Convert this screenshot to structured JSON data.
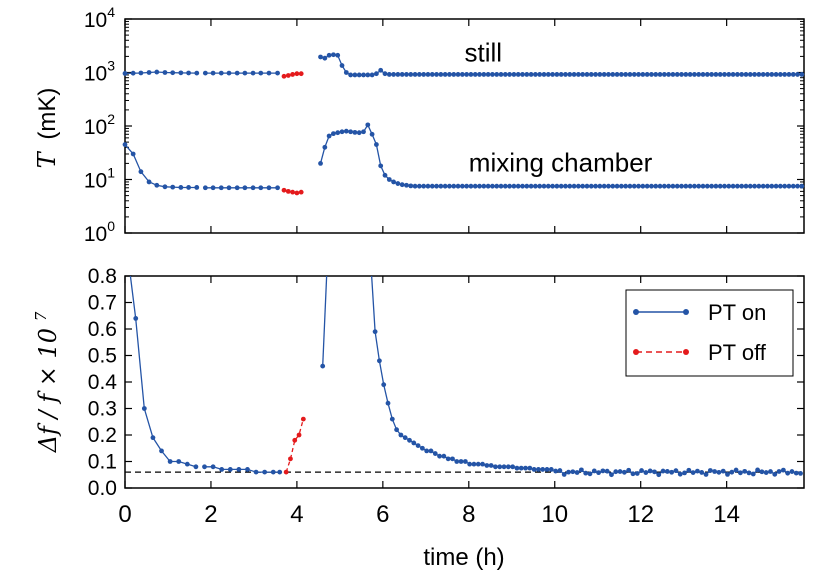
{
  "chart_data": [
    {
      "type": "line",
      "yscale": "log",
      "ylabel": {
        "symbol": "T",
        "unit": "(mK)"
      },
      "xlim": [
        0,
        15.8
      ],
      "ylim": [
        1,
        10000
      ],
      "yticks": [
        {
          "base": "10",
          "exp": "0",
          "value": 1
        },
        {
          "base": "10",
          "exp": "1",
          "value": 10
        },
        {
          "base": "10",
          "exp": "2",
          "value": 100
        },
        {
          "base": "10",
          "exp": "3",
          "value": 1000
        },
        {
          "base": "10",
          "exp": "4",
          "value": 10000
        }
      ],
      "annotations": [
        {
          "text": "still",
          "x": 7.9,
          "y": 1600
        },
        {
          "text": "mixing chamber",
          "x": 8.0,
          "y": 14
        }
      ],
      "series": [
        {
          "style": "PT on",
          "color": "#2454a6",
          "segments": [
            {
              "x": [
                0,
                0.19,
                0.37,
                0.56,
                0.74,
                0.93,
                1.11,
                1.3,
                1.48,
                1.67
              ],
              "y": [
                960,
                970,
                980,
                1000,
                1020,
                1000,
                990,
                985,
                980,
                975
              ]
            },
            {
              "x": [
                1.87,
                2.05,
                2.24,
                2.42,
                2.61,
                2.79,
                2.98,
                3.16,
                3.35,
                3.55
              ],
              "y": [
                975,
                975,
                975,
                975,
                975,
                975,
                975,
                975,
                975,
                975
              ]
            },
            {
              "x": [
                4.55,
                4.65,
                4.75,
                4.85,
                4.95,
                5.05,
                5.15,
                5.25,
                5.35,
                5.45,
                5.55,
                5.65,
                5.75,
                5.85,
                5.95,
                6.05
              ],
              "y": [
                1950,
                1850,
                2100,
                2150,
                2100,
                1350,
                1000,
                900,
                900,
                900,
                900,
                900,
                900,
                950,
                1100,
                950
              ]
            },
            {
              "x": "range:6.15:15.75:0.1",
              "y": "const:920"
            },
            {
              "x": [
                0,
                0.19,
                0.37,
                0.56,
                0.74,
                0.93,
                1.11,
                1.3,
                1.48,
                1.67
              ],
              "y": [
                45,
                30,
                14,
                9,
                7.8,
                7.3,
                7.2,
                7.1,
                7.1,
                7.1
              ]
            },
            {
              "x": [
                1.87,
                2.05,
                2.24,
                2.42,
                2.61,
                2.79,
                2.98,
                3.16,
                3.35,
                3.55
              ],
              "y": [
                7,
                7,
                7,
                7,
                7,
                7,
                7,
                7,
                7,
                7
              ]
            },
            {
              "x": [
                4.55,
                4.65,
                4.75,
                4.85,
                4.95,
                5.05,
                5.15,
                5.25,
                5.35,
                5.45,
                5.55,
                5.65,
                5.75,
                5.85,
                5.95,
                6.05,
                6.15,
                6.25,
                6.35,
                6.45,
                6.55,
                6.65
              ],
              "y": [
                20,
                40,
                65,
                72,
                75,
                78,
                80,
                78,
                76,
                75,
                78,
                105,
                70,
                45,
                18,
                12,
                10,
                9,
                8.4,
                8.0,
                7.8,
                7.6
              ]
            },
            {
              "x": "range:6.75:15.75:0.1",
              "y": "const:7.5"
            }
          ]
        },
        {
          "style": "PT off",
          "color": "#e41a1c",
          "segments": [
            {
              "x": [
                3.7,
                3.8,
                3.9,
                4.0,
                4.1
              ],
              "y": [
                850,
                880,
                920,
                950,
                950
              ]
            },
            {
              "x": [
                3.7,
                3.8,
                3.9,
                4.0,
                4.1
              ],
              "y": [
                6.3,
                6.0,
                5.8,
                5.6,
                5.8
              ]
            }
          ]
        }
      ]
    },
    {
      "type": "line",
      "xlabel": "time (h)",
      "ylabel": {
        "text": "Δf / f × 10",
        "sup": "7"
      },
      "xlim": [
        0,
        15.8
      ],
      "ylim": [
        0,
        0.8
      ],
      "xticks": [
        "0",
        "2",
        "4",
        "6",
        "8",
        "10",
        "12",
        "14"
      ],
      "yticks": [
        "0.0",
        "0.1",
        "0.2",
        "0.3",
        "0.4",
        "0.5",
        "0.6",
        "0.7",
        "0.8"
      ],
      "hline": 0.06,
      "legend": {
        "placement": "top-right",
        "entries": [
          "PT on",
          "PT off"
        ]
      },
      "series": [
        {
          "name": "PT on",
          "color": "#2454a6",
          "segments": [
            {
              "x": [
                0.05,
                0.25,
                0.45,
                0.65,
                0.85,
                1.05,
                1.25,
                1.45,
                1.65
              ],
              "y": [
                0.9,
                0.64,
                0.3,
                0.19,
                0.14,
                0.1,
                0.1,
                0.09,
                0.08
              ]
            },
            {
              "x": [
                1.85,
                2.05,
                2.25,
                2.45,
                2.65,
                2.85,
                3.05,
                3.25,
                3.45,
                3.6
              ],
              "y": [
                0.08,
                0.08,
                0.07,
                0.07,
                0.07,
                0.07,
                0.06,
                0.06,
                0.06,
                0.06
              ]
            },
            {
              "x": [
                4.6,
                4.72
              ],
              "y": [
                0.46,
                0.9
              ]
            },
            {
              "x": [
                5.7,
                5.82,
                5.92,
                6.02,
                6.12,
                6.22,
                6.32,
                6.42,
                6.52,
                6.62,
                6.72,
                6.82,
                6.92,
                7.02,
                7.12,
                7.22,
                7.32,
                7.42,
                7.52,
                7.62,
                7.72,
                7.82,
                7.92,
                8.02,
                8.12,
                8.22,
                8.32,
                8.42,
                8.52,
                8.62,
                8.72,
                8.82,
                8.92,
                9.02,
                9.12,
                9.22,
                9.32,
                9.42,
                9.52,
                9.62,
                9.72,
                9.82,
                9.92
              ],
              "y": [
                0.9,
                0.59,
                0.48,
                0.39,
                0.32,
                0.26,
                0.22,
                0.2,
                0.19,
                0.18,
                0.17,
                0.16,
                0.15,
                0.14,
                0.14,
                0.13,
                0.12,
                0.12,
                0.11,
                0.11,
                0.1,
                0.1,
                0.1,
                0.09,
                0.09,
                0.09,
                0.09,
                0.085,
                0.085,
                0.08,
                0.08,
                0.08,
                0.08,
                0.08,
                0.075,
                0.075,
                0.075,
                0.075,
                0.07,
                0.07,
                0.07,
                0.07,
                0.07
              ]
            },
            {
              "x": "range:10.02:15.72:0.1",
              "y": "noisy:0.06"
            }
          ]
        },
        {
          "name": "PT off",
          "color": "#e41a1c",
          "segments": [
            {
              "x": [
                3.75,
                3.85,
                3.95,
                4.05,
                4.15
              ],
              "y": [
                0.06,
                0.11,
                0.18,
                0.2,
                0.26
              ]
            }
          ]
        }
      ]
    }
  ]
}
